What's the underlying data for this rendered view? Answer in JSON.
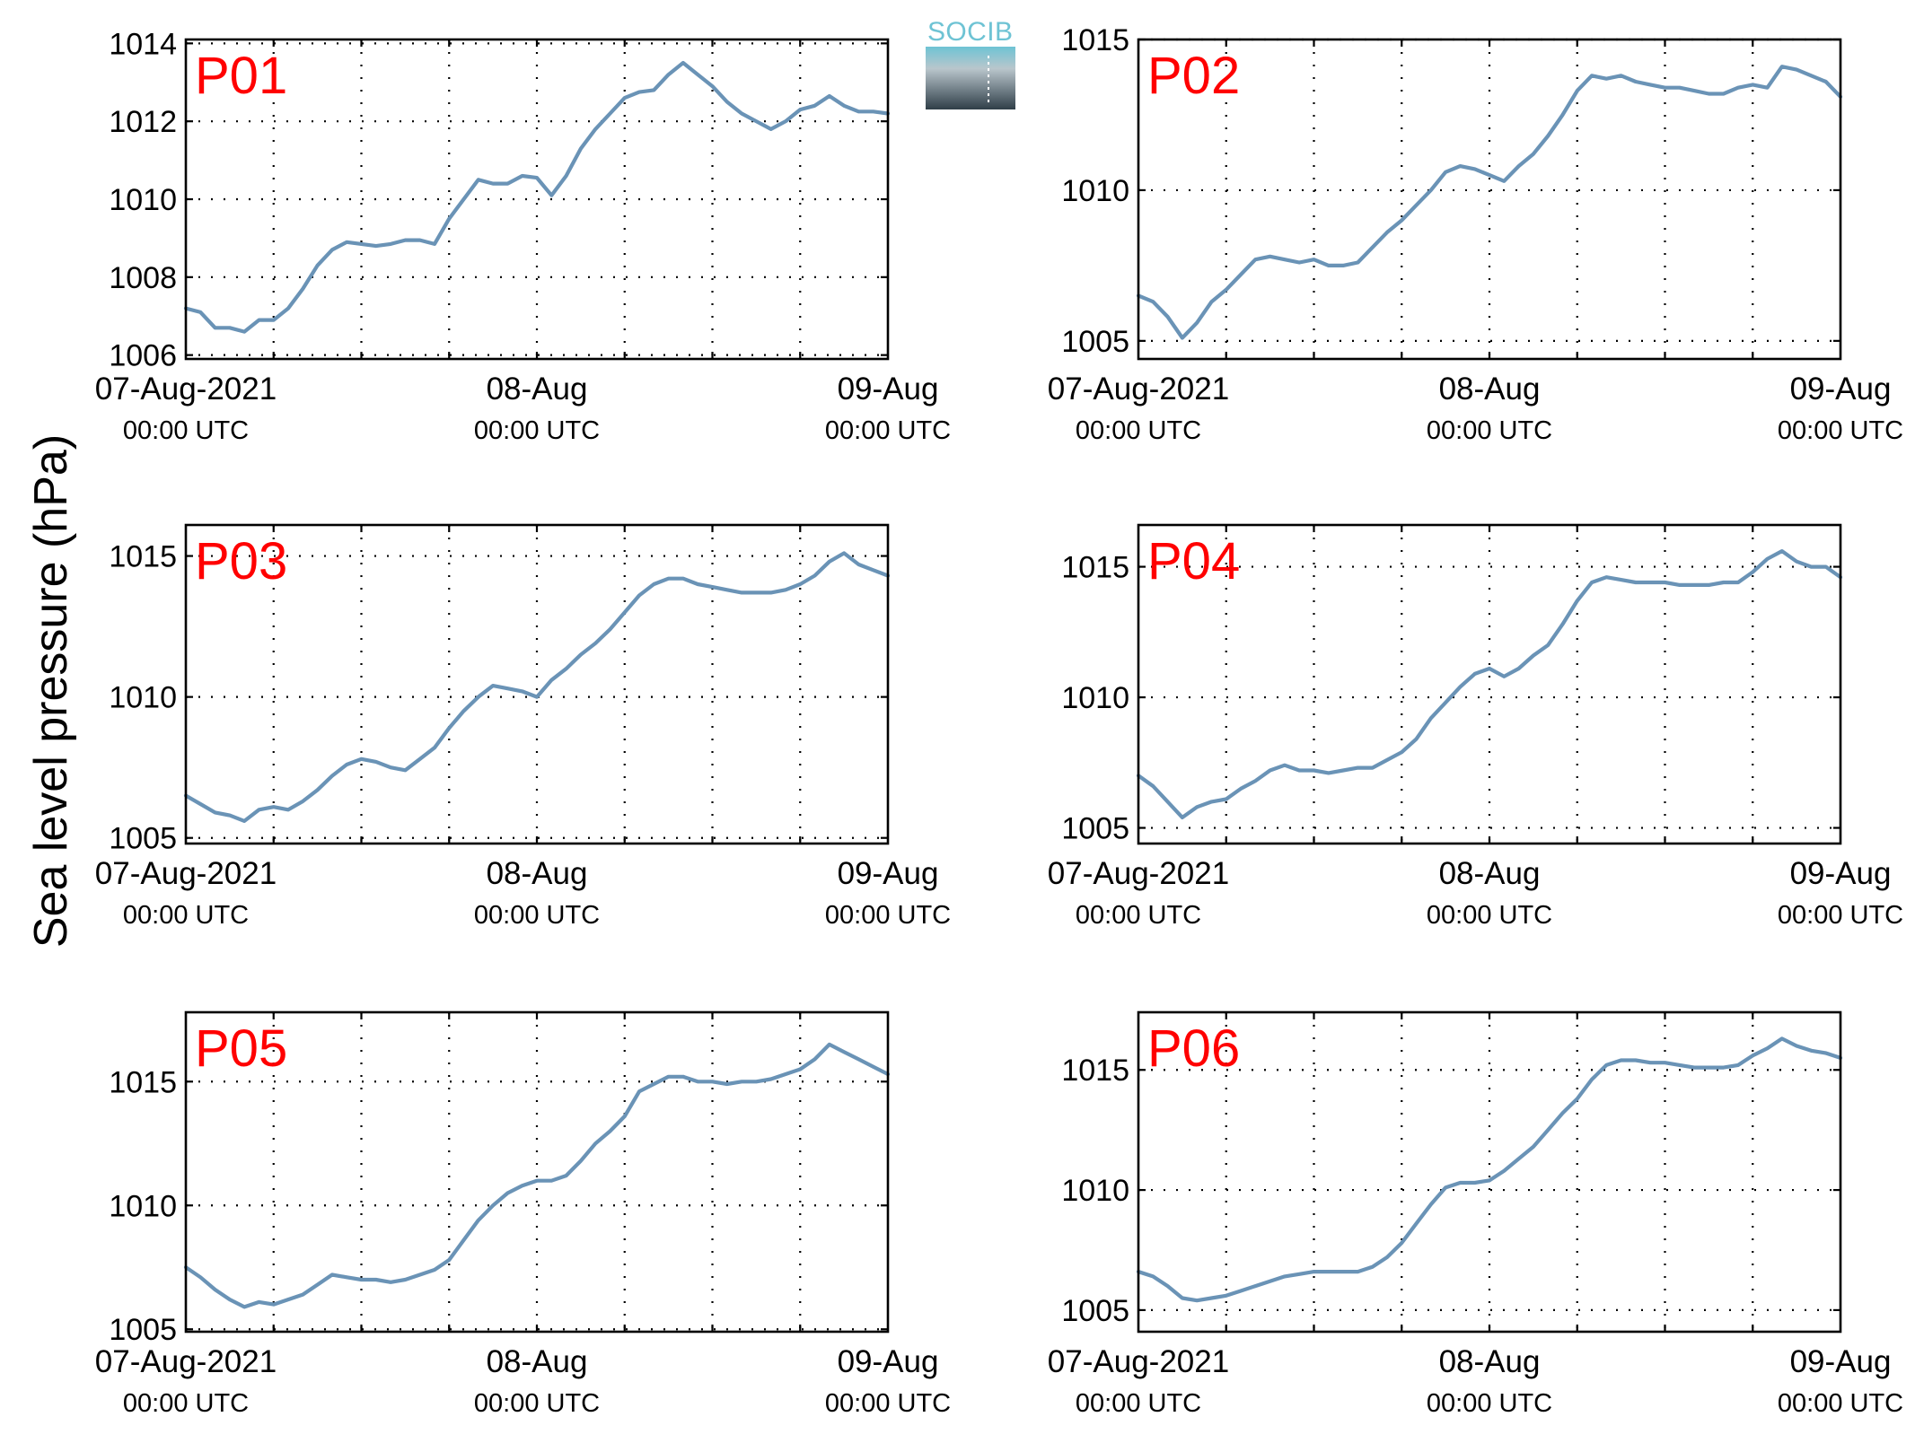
{
  "chart_data": {
    "type": "line",
    "ylabel": "Sea level pressure (hPa)",
    "logo_text": "SOCIB",
    "line_color": "#6a93b6",
    "title_color": "#ff0000",
    "grid": true,
    "x_ticks": [
      {
        "label": "07-Aug-2021",
        "sub": "00:00 UTC",
        "hour": 0
      },
      {
        "label": "08-Aug",
        "sub": "00:00 UTC",
        "hour": 24
      },
      {
        "label": "09-Aug",
        "sub": "00:00 UTC",
        "hour": 48
      }
    ],
    "x_range_hours": [
      0,
      48
    ],
    "panels": [
      {
        "title": "P01",
        "ylim": [
          1005.9,
          1014.1
        ],
        "yticks": [
          1006,
          1008,
          1010,
          1012,
          1014
        ],
        "points": [
          [
            0,
            1007.2
          ],
          [
            1,
            1007.1
          ],
          [
            2,
            1006.7
          ],
          [
            3,
            1006.7
          ],
          [
            4,
            1006.6
          ],
          [
            5,
            1006.9
          ],
          [
            6,
            1006.9
          ],
          [
            7,
            1007.2
          ],
          [
            8,
            1007.7
          ],
          [
            9,
            1008.3
          ],
          [
            10,
            1008.7
          ],
          [
            11,
            1008.9
          ],
          [
            12,
            1008.85
          ],
          [
            13,
            1008.8
          ],
          [
            14,
            1008.85
          ],
          [
            15,
            1008.95
          ],
          [
            16,
            1008.95
          ],
          [
            17,
            1008.85
          ],
          [
            18,
            1009.5
          ],
          [
            19,
            1010.0
          ],
          [
            20,
            1010.5
          ],
          [
            21,
            1010.4
          ],
          [
            22,
            1010.4
          ],
          [
            23,
            1010.6
          ],
          [
            24,
            1010.55
          ],
          [
            25,
            1010.1
          ],
          [
            26,
            1010.6
          ],
          [
            27,
            1011.3
          ],
          [
            28,
            1011.8
          ],
          [
            29,
            1012.2
          ],
          [
            30,
            1012.6
          ],
          [
            31,
            1012.75
          ],
          [
            32,
            1012.8
          ],
          [
            33,
            1013.2
          ],
          [
            34,
            1013.5
          ],
          [
            35,
            1013.2
          ],
          [
            36,
            1012.9
          ],
          [
            37,
            1012.5
          ],
          [
            38,
            1012.2
          ],
          [
            39,
            1012.0
          ],
          [
            40,
            1011.8
          ],
          [
            41,
            1012.0
          ],
          [
            42,
            1012.3
          ],
          [
            43,
            1012.4
          ],
          [
            44,
            1012.65
          ],
          [
            45,
            1012.4
          ],
          [
            46,
            1012.25
          ],
          [
            47,
            1012.25
          ],
          [
            48,
            1012.2
          ]
        ]
      },
      {
        "title": "P02",
        "ylim": [
          1004.4,
          1015.0
        ],
        "yticks": [
          1005,
          1010,
          1015
        ],
        "points": [
          [
            0,
            1006.5
          ],
          [
            1,
            1006.3
          ],
          [
            2,
            1005.8
          ],
          [
            3,
            1005.1
          ],
          [
            4,
            1005.6
          ],
          [
            5,
            1006.3
          ],
          [
            6,
            1006.7
          ],
          [
            7,
            1007.2
          ],
          [
            8,
            1007.7
          ],
          [
            9,
            1007.8
          ],
          [
            10,
            1007.7
          ],
          [
            11,
            1007.6
          ],
          [
            12,
            1007.7
          ],
          [
            13,
            1007.5
          ],
          [
            14,
            1007.5
          ],
          [
            15,
            1007.6
          ],
          [
            16,
            1008.1
          ],
          [
            17,
            1008.6
          ],
          [
            18,
            1009.0
          ],
          [
            19,
            1009.5
          ],
          [
            20,
            1010.0
          ],
          [
            21,
            1010.6
          ],
          [
            22,
            1010.8
          ],
          [
            23,
            1010.7
          ],
          [
            24,
            1010.5
          ],
          [
            25,
            1010.3
          ],
          [
            26,
            1010.8
          ],
          [
            27,
            1011.2
          ],
          [
            28,
            1011.8
          ],
          [
            29,
            1012.5
          ],
          [
            30,
            1013.3
          ],
          [
            31,
            1013.8
          ],
          [
            32,
            1013.7
          ],
          [
            33,
            1013.8
          ],
          [
            34,
            1013.6
          ],
          [
            35,
            1013.5
          ],
          [
            36,
            1013.4
          ],
          [
            37,
            1013.4
          ],
          [
            38,
            1013.3
          ],
          [
            39,
            1013.2
          ],
          [
            40,
            1013.2
          ],
          [
            41,
            1013.4
          ],
          [
            42,
            1013.5
          ],
          [
            43,
            1013.4
          ],
          [
            44,
            1014.1
          ],
          [
            45,
            1014.0
          ],
          [
            46,
            1013.8
          ],
          [
            47,
            1013.6
          ],
          [
            48,
            1013.1
          ]
        ]
      },
      {
        "title": "P03",
        "ylim": [
          1004.8,
          1016.1
        ],
        "yticks": [
          1005,
          1010,
          1015
        ],
        "points": [
          [
            0,
            1006.5
          ],
          [
            1,
            1006.2
          ],
          [
            2,
            1005.9
          ],
          [
            3,
            1005.8
          ],
          [
            4,
            1005.6
          ],
          [
            5,
            1006.0
          ],
          [
            6,
            1006.1
          ],
          [
            7,
            1006.0
          ],
          [
            8,
            1006.3
          ],
          [
            9,
            1006.7
          ],
          [
            10,
            1007.2
          ],
          [
            11,
            1007.6
          ],
          [
            12,
            1007.8
          ],
          [
            13,
            1007.7
          ],
          [
            14,
            1007.5
          ],
          [
            15,
            1007.4
          ],
          [
            16,
            1007.8
          ],
          [
            17,
            1008.2
          ],
          [
            18,
            1008.9
          ],
          [
            19,
            1009.5
          ],
          [
            20,
            1010.0
          ],
          [
            21,
            1010.4
          ],
          [
            22,
            1010.3
          ],
          [
            23,
            1010.2
          ],
          [
            24,
            1010.0
          ],
          [
            25,
            1010.6
          ],
          [
            26,
            1011.0
          ],
          [
            27,
            1011.5
          ],
          [
            28,
            1011.9
          ],
          [
            29,
            1012.4
          ],
          [
            30,
            1013.0
          ],
          [
            31,
            1013.6
          ],
          [
            32,
            1014.0
          ],
          [
            33,
            1014.2
          ],
          [
            34,
            1014.2
          ],
          [
            35,
            1014.0
          ],
          [
            36,
            1013.9
          ],
          [
            37,
            1013.8
          ],
          [
            38,
            1013.7
          ],
          [
            39,
            1013.7
          ],
          [
            40,
            1013.7
          ],
          [
            41,
            1013.8
          ],
          [
            42,
            1014.0
          ],
          [
            43,
            1014.3
          ],
          [
            44,
            1014.8
          ],
          [
            45,
            1015.1
          ],
          [
            46,
            1014.7
          ],
          [
            47,
            1014.5
          ],
          [
            48,
            1014.3
          ]
        ]
      },
      {
        "title": "P04",
        "ylim": [
          1004.4,
          1016.6
        ],
        "yticks": [
          1005,
          1010,
          1015
        ],
        "points": [
          [
            0,
            1007.0
          ],
          [
            1,
            1006.6
          ],
          [
            2,
            1006.0
          ],
          [
            3,
            1005.4
          ],
          [
            4,
            1005.8
          ],
          [
            5,
            1006.0
          ],
          [
            6,
            1006.1
          ],
          [
            7,
            1006.5
          ],
          [
            8,
            1006.8
          ],
          [
            9,
            1007.2
          ],
          [
            10,
            1007.4
          ],
          [
            11,
            1007.2
          ],
          [
            12,
            1007.2
          ],
          [
            13,
            1007.1
          ],
          [
            14,
            1007.2
          ],
          [
            15,
            1007.3
          ],
          [
            16,
            1007.3
          ],
          [
            17,
            1007.6
          ],
          [
            18,
            1007.9
          ],
          [
            19,
            1008.4
          ],
          [
            20,
            1009.2
          ],
          [
            21,
            1009.8
          ],
          [
            22,
            1010.4
          ],
          [
            23,
            1010.9
          ],
          [
            24,
            1011.1
          ],
          [
            25,
            1010.8
          ],
          [
            26,
            1011.1
          ],
          [
            27,
            1011.6
          ],
          [
            28,
            1012.0
          ],
          [
            29,
            1012.8
          ],
          [
            30,
            1013.7
          ],
          [
            31,
            1014.4
          ],
          [
            32,
            1014.6
          ],
          [
            33,
            1014.5
          ],
          [
            34,
            1014.4
          ],
          [
            35,
            1014.4
          ],
          [
            36,
            1014.4
          ],
          [
            37,
            1014.3
          ],
          [
            38,
            1014.3
          ],
          [
            39,
            1014.3
          ],
          [
            40,
            1014.4
          ],
          [
            41,
            1014.4
          ],
          [
            42,
            1014.8
          ],
          [
            43,
            1015.3
          ],
          [
            44,
            1015.6
          ],
          [
            45,
            1015.2
          ],
          [
            46,
            1015.0
          ],
          [
            47,
            1015.0
          ],
          [
            48,
            1014.6
          ]
        ]
      },
      {
        "title": "P05",
        "ylim": [
          1004.9,
          1017.8
        ],
        "yticks": [
          1005,
          1010,
          1015
        ],
        "points": [
          [
            0,
            1007.5
          ],
          [
            1,
            1007.1
          ],
          [
            2,
            1006.6
          ],
          [
            3,
            1006.2
          ],
          [
            4,
            1005.9
          ],
          [
            5,
            1006.1
          ],
          [
            6,
            1006.0
          ],
          [
            7,
            1006.2
          ],
          [
            8,
            1006.4
          ],
          [
            9,
            1006.8
          ],
          [
            10,
            1007.2
          ],
          [
            11,
            1007.1
          ],
          [
            12,
            1007.0
          ],
          [
            13,
            1007.0
          ],
          [
            14,
            1006.9
          ],
          [
            15,
            1007.0
          ],
          [
            16,
            1007.2
          ],
          [
            17,
            1007.4
          ],
          [
            18,
            1007.8
          ],
          [
            19,
            1008.6
          ],
          [
            20,
            1009.4
          ],
          [
            21,
            1010.0
          ],
          [
            22,
            1010.5
          ],
          [
            23,
            1010.8
          ],
          [
            24,
            1011.0
          ],
          [
            25,
            1011.0
          ],
          [
            26,
            1011.2
          ],
          [
            27,
            1011.8
          ],
          [
            28,
            1012.5
          ],
          [
            29,
            1013.0
          ],
          [
            30,
            1013.6
          ],
          [
            31,
            1014.6
          ],
          [
            32,
            1014.9
          ],
          [
            33,
            1015.2
          ],
          [
            34,
            1015.2
          ],
          [
            35,
            1015.0
          ],
          [
            36,
            1015.0
          ],
          [
            37,
            1014.9
          ],
          [
            38,
            1015.0
          ],
          [
            39,
            1015.0
          ],
          [
            40,
            1015.1
          ],
          [
            41,
            1015.3
          ],
          [
            42,
            1015.5
          ],
          [
            43,
            1015.9
          ],
          [
            44,
            1016.5
          ],
          [
            45,
            1016.2
          ],
          [
            46,
            1015.9
          ],
          [
            47,
            1015.6
          ],
          [
            48,
            1015.3
          ]
        ]
      },
      {
        "title": "P06",
        "ylim": [
          1004.1,
          1017.4
        ],
        "yticks": [
          1005,
          1010,
          1015
        ],
        "points": [
          [
            0,
            1006.6
          ],
          [
            1,
            1006.4
          ],
          [
            2,
            1006.0
          ],
          [
            3,
            1005.5
          ],
          [
            4,
            1005.4
          ],
          [
            5,
            1005.5
          ],
          [
            6,
            1005.6
          ],
          [
            7,
            1005.8
          ],
          [
            8,
            1006.0
          ],
          [
            9,
            1006.2
          ],
          [
            10,
            1006.4
          ],
          [
            11,
            1006.5
          ],
          [
            12,
            1006.6
          ],
          [
            13,
            1006.6
          ],
          [
            14,
            1006.6
          ],
          [
            15,
            1006.6
          ],
          [
            16,
            1006.8
          ],
          [
            17,
            1007.2
          ],
          [
            18,
            1007.8
          ],
          [
            19,
            1008.6
          ],
          [
            20,
            1009.4
          ],
          [
            21,
            1010.1
          ],
          [
            22,
            1010.3
          ],
          [
            23,
            1010.3
          ],
          [
            24,
            1010.4
          ],
          [
            25,
            1010.8
          ],
          [
            26,
            1011.3
          ],
          [
            27,
            1011.8
          ],
          [
            28,
            1012.5
          ],
          [
            29,
            1013.2
          ],
          [
            30,
            1013.8
          ],
          [
            31,
            1014.6
          ],
          [
            32,
            1015.2
          ],
          [
            33,
            1015.4
          ],
          [
            34,
            1015.4
          ],
          [
            35,
            1015.3
          ],
          [
            36,
            1015.3
          ],
          [
            37,
            1015.2
          ],
          [
            38,
            1015.1
          ],
          [
            39,
            1015.1
          ],
          [
            40,
            1015.1
          ],
          [
            41,
            1015.2
          ],
          [
            42,
            1015.6
          ],
          [
            43,
            1015.9
          ],
          [
            44,
            1016.3
          ],
          [
            45,
            1016.0
          ],
          [
            46,
            1015.8
          ],
          [
            47,
            1015.7
          ],
          [
            48,
            1015.5
          ]
        ]
      }
    ]
  }
}
